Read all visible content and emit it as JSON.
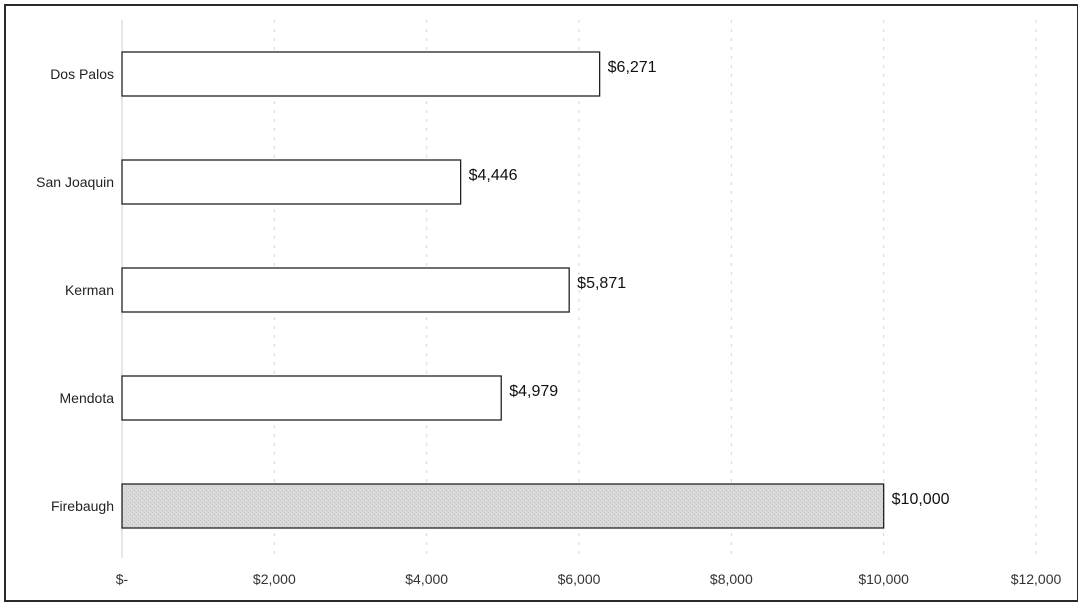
{
  "chart_data": {
    "type": "bar",
    "orientation": "horizontal",
    "categories": [
      "Dos Palos",
      "San Joaquin",
      "Kerman",
      "Mendota",
      "Firebaugh"
    ],
    "values": [
      6271,
      4446,
      5871,
      4979,
      10000
    ],
    "value_labels": [
      "$6,271",
      "$4,446",
      "$5,871",
      "$4,979",
      "$10,000"
    ],
    "highlight_category": "Firebaugh",
    "xlim": [
      0,
      12000
    ],
    "x_ticks": [
      0,
      2000,
      4000,
      6000,
      8000,
      10000,
      12000
    ],
    "x_tick_labels": [
      "$-",
      "$2,000",
      "$4,000",
      "$6,000",
      "$8,000",
      "$10,000",
      "$12,000"
    ],
    "grid": true,
    "legend": false,
    "colors": {
      "bar_fill": "#ffffff",
      "bar_stroke": "#222222",
      "highlight_fill": "#d9d9d9"
    }
  }
}
